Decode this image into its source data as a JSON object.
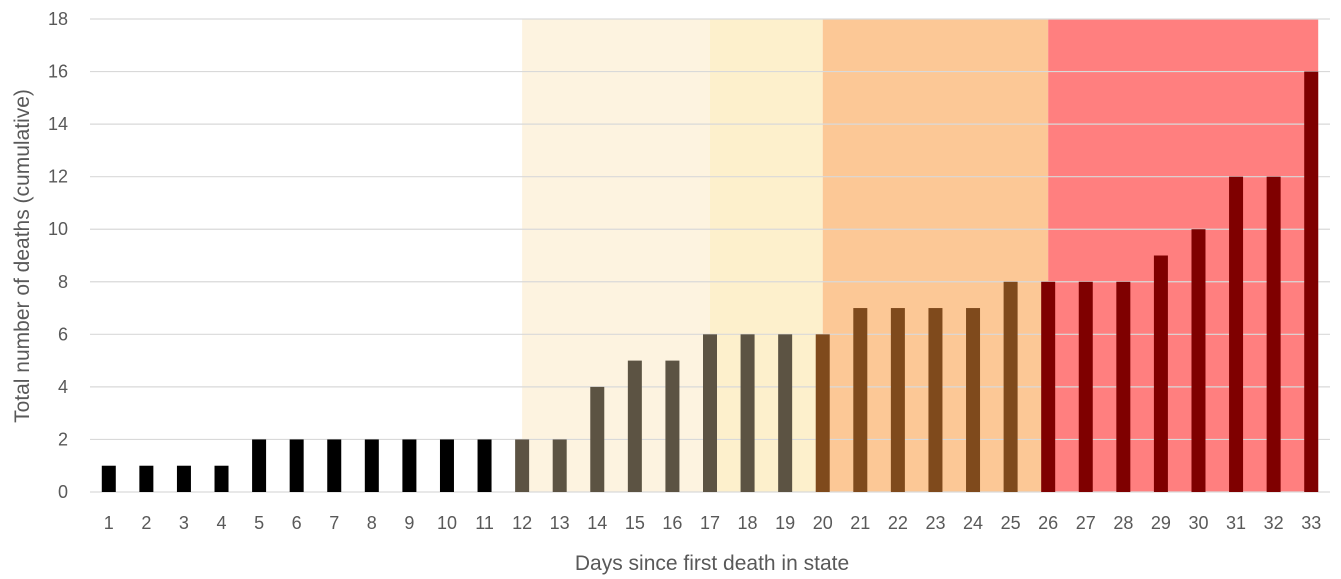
{
  "chart_data": {
    "type": "bar",
    "title": "",
    "xlabel": "Days since first death in state",
    "ylabel": "Total number of deaths (cumulative)",
    "categories": [
      "1",
      "2",
      "3",
      "4",
      "5",
      "6",
      "7",
      "8",
      "9",
      "10",
      "11",
      "12",
      "13",
      "14",
      "15",
      "16",
      "17",
      "18",
      "19",
      "20",
      "21",
      "22",
      "23",
      "24",
      "25",
      "26",
      "27",
      "28",
      "29",
      "30",
      "31",
      "32",
      "33"
    ],
    "values": [
      1,
      1,
      1,
      1,
      2,
      2,
      2,
      2,
      2,
      2,
      2,
      2,
      2,
      4,
      5,
      5,
      6,
      6,
      6,
      6,
      7,
      7,
      7,
      7,
      8,
      8,
      8,
      8,
      9,
      10,
      12,
      12,
      16
    ],
    "ylim": [
      0,
      18
    ],
    "yticks": [
      0,
      2,
      4,
      6,
      8,
      10,
      12,
      14,
      16,
      18
    ],
    "grid": "horizontal",
    "legend": "none",
    "colors": {
      "grid": "#d9d9d9",
      "tick_text": "#595959",
      "bar_default": "#000000"
    },
    "shaded_periods": [
      {
        "from": "12",
        "to": "17",
        "color": "#fdf3e0",
        "bar_color": "#5c5343"
      },
      {
        "from": "17",
        "to": "20",
        "color": "#fdf0cc",
        "bar_color": "#5c5343"
      },
      {
        "from": "20",
        "to": "26",
        "color": "#fcc896",
        "bar_color": "#7f4a1c"
      },
      {
        "from": "26",
        "to": "33",
        "color": "#ff7f7f",
        "bar_color": "#7f0000"
      }
    ]
  }
}
